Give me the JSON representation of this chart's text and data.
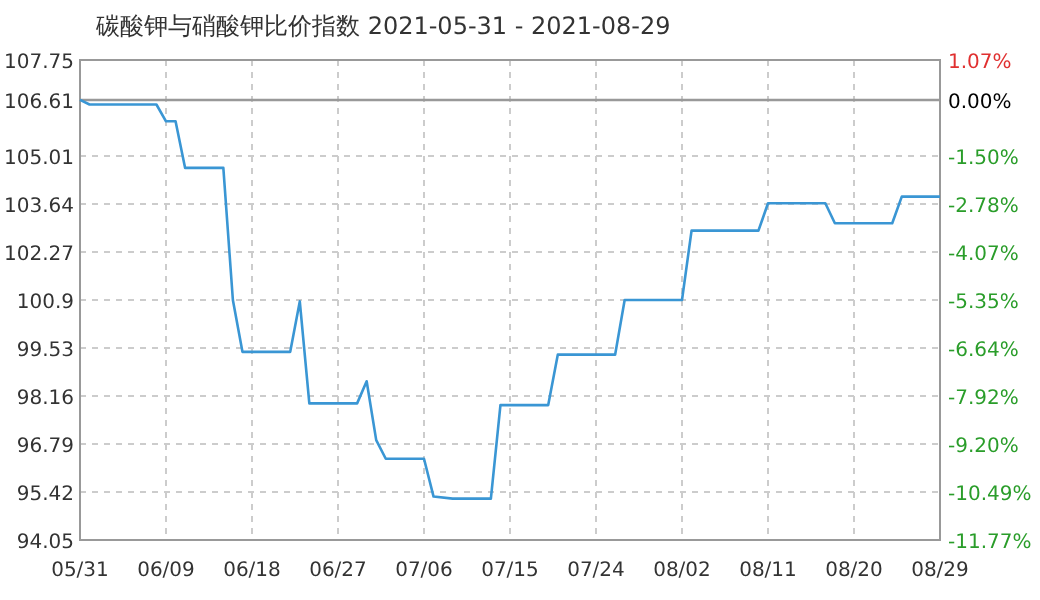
{
  "chart_data": {
    "type": "line",
    "title": "碳酸钾与硝酸钾比价指数 2021-05-31 - 2021-08-29",
    "x": [
      "2021-05-31",
      "2021-06-01",
      "2021-06-08",
      "2021-06-09",
      "2021-06-10",
      "2021-06-11",
      "2021-06-15",
      "2021-06-16",
      "2021-06-17",
      "2021-06-22",
      "2021-06-23",
      "2021-06-24",
      "2021-06-29",
      "2021-06-30",
      "2021-07-01",
      "2021-07-02",
      "2021-07-06",
      "2021-07-07",
      "2021-07-09",
      "2021-07-13",
      "2021-07-14",
      "2021-07-19",
      "2021-07-20",
      "2021-07-26",
      "2021-07-27",
      "2021-08-02",
      "2021-08-03",
      "2021-08-10",
      "2021-08-11",
      "2021-08-17",
      "2021-08-18",
      "2021-08-24",
      "2021-08-25",
      "2021-08-29"
    ],
    "series": [
      {
        "color": "#3a96d4",
        "values": [
          106.61,
          106.48,
          106.48,
          106.0,
          106.0,
          104.67,
          104.67,
          100.9,
          99.42,
          99.42,
          100.86,
          97.95,
          97.95,
          98.58,
          96.9,
          96.37,
          96.37,
          95.29,
          95.23,
          95.23,
          97.9,
          97.9,
          99.34,
          99.34,
          100.9,
          100.9,
          102.88,
          102.88,
          103.66,
          103.66,
          103.09,
          103.09,
          103.85,
          103.85
        ]
      }
    ],
    "xlim": [
      "2021-05-31",
      "2021-08-29"
    ],
    "xticks": [
      {
        "value": "2021-05-31",
        "label": "05/31"
      },
      {
        "value": "2021-06-09",
        "label": "06/09"
      },
      {
        "value": "2021-06-18",
        "label": "06/18"
      },
      {
        "value": "2021-06-27",
        "label": "06/27"
      },
      {
        "value": "2021-07-06",
        "label": "07/06"
      },
      {
        "value": "2021-07-15",
        "label": "07/15"
      },
      {
        "value": "2021-07-24",
        "label": "07/24"
      },
      {
        "value": "2021-08-02",
        "label": "08/02"
      },
      {
        "value": "2021-08-11",
        "label": "08/11"
      },
      {
        "value": "2021-08-20",
        "label": "08/20"
      },
      {
        "value": "2021-08-29",
        "label": "08/29"
      }
    ],
    "ylim": [
      94.05,
      107.75
    ],
    "yticks": [
      94.05,
      95.42,
      96.79,
      98.16,
      99.53,
      100.9,
      102.27,
      103.64,
      105.01,
      106.61,
      107.75
    ],
    "y2lim": [
      -11.77,
      1.07
    ],
    "y2ticks": [
      {
        "value": -11.77,
        "label": "-11.77%"
      },
      {
        "value": -10.49,
        "label": "-10.49%"
      },
      {
        "value": -9.2,
        "label": "-9.20%"
      },
      {
        "value": -7.92,
        "label": "-7.92%"
      },
      {
        "value": -6.64,
        "label": "-6.64%"
      },
      {
        "value": -5.35,
        "label": "-5.35%"
      },
      {
        "value": -4.07,
        "label": "-4.07%"
      },
      {
        "value": -2.78,
        "label": "-2.78%"
      },
      {
        "value": -1.5,
        "label": "-1.50%"
      },
      {
        "value": 0,
        "label": "0.00%"
      },
      {
        "value": 1.07,
        "label": "1.07%"
      }
    ],
    "ref_lines": [
      {
        "axis": "y",
        "value": 106.61,
        "color": "#999999"
      }
    ],
    "grid": true,
    "marker": "none",
    "line_style": "solid"
  }
}
